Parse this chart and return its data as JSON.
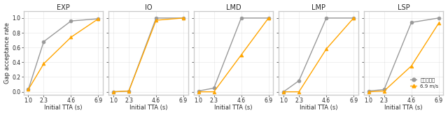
{
  "titles": [
    "EXP",
    "IO",
    "LMD",
    "LMP",
    "LSP"
  ],
  "x_ticks": [
    1.0,
    2.3,
    4.6,
    6.9
  ],
  "x_label": "Initial TTA (s)",
  "y_label": "Gap acceptance rate",
  "y_ticks": [
    0.0,
    0.2,
    0.4,
    0.6,
    0.8,
    1.0
  ],
  "data": {
    "EXP": {
      "human": [
        0.03,
        0.68,
        0.96,
        0.99
      ],
      "model": [
        0.03,
        0.38,
        0.74,
        0.99
      ]
    },
    "IO": {
      "human": [
        0.0,
        0.01,
        1.0,
        1.0
      ],
      "model": [
        0.0,
        0.01,
        0.97,
        1.0
      ]
    },
    "LMD": {
      "human": [
        0.01,
        0.05,
        1.0,
        1.0
      ],
      "model": [
        0.0,
        0.0,
        0.5,
        1.0
      ]
    },
    "LMP": {
      "human": [
        0.0,
        0.15,
        1.0,
        1.0
      ],
      "model": [
        0.0,
        0.0,
        0.58,
        1.0
      ]
    },
    "LSP": {
      "human": [
        0.01,
        0.03,
        0.94,
        1.0
      ],
      "model": [
        0.0,
        0.01,
        0.35,
        0.93
      ]
    }
  },
  "figsize": [
    6.4,
    1.65
  ],
  "dpi": 100,
  "human_color": "#999999",
  "model_color": "#FFA500",
  "legend_line1": "人类参与者",
  "legend_line2": "6.9 m/s"
}
